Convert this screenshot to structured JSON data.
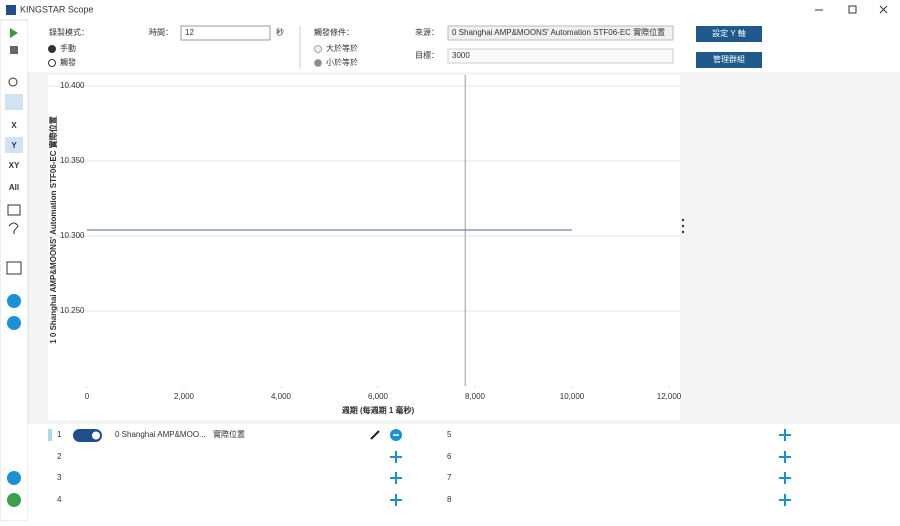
{
  "window": {
    "title": "KINGSTAR Scope"
  },
  "toolbar": {
    "buttons": [
      "X",
      "Y",
      "XY",
      "All"
    ]
  },
  "controls": {
    "record_mode_label": "錄製模式：",
    "manual": "手動",
    "trigger": "觸發",
    "time_label": "時間：",
    "time_value": "12",
    "time_unit": "秒",
    "trigger_cond_label": "觸發條件：",
    "gte": "大於等於",
    "lte": "小於等於",
    "source_label": "來源：",
    "source_value": "0 Shanghai AMP&MOONS' Automation STF06-EC 實際位置",
    "target_label": "目標：",
    "target_value": "3000",
    "set_y_button": "設定 Y 軸",
    "manage_group_button": "管理群組"
  },
  "chart_data": {
    "type": "line",
    "x_label": "週期 (每週期 1 毫秒)",
    "y_label": "1   0 Shanghai AMP&MOONS' Automation STF06-EC 實際位置",
    "x": [
      0,
      10000
    ],
    "series": [
      {
        "color": "#4a6a9a",
        "values": [
          10.304,
          10.304
        ]
      }
    ],
    "xlim": [
      0,
      12000
    ],
    "xticks": [
      0,
      {
        "value": 2000,
        "label": "2,000"
      },
      {
        "value": 4000,
        "label": "4,000"
      },
      {
        "value": 6000,
        "label": "6,000"
      },
      {
        "value": 8000,
        "label": "8,000"
      },
      {
        "value": 10000,
        "label": "10,000"
      },
      {
        "value": 12000,
        "label": "12,000"
      }
    ],
    "ylim": [
      10.2,
      10.4
    ],
    "yticks": [
      {
        "value": 10.25,
        "label": "10.250"
      },
      {
        "value": 10.3,
        "label": "10.300"
      },
      {
        "value": 10.35,
        "label": "10.350"
      },
      {
        "value": 10.4,
        "label": "10.400"
      }
    ],
    "grid": true,
    "cursor_x": 7800
  },
  "channels": [
    {
      "index": 1,
      "source": "0 Shanghai AMP&MOO...",
      "signal": "實際位置"
    },
    {
      "index": 2
    },
    {
      "index": 3
    },
    {
      "index": 4
    },
    {
      "index": 5
    },
    {
      "index": 6
    },
    {
      "index": 7
    },
    {
      "index": 8
    }
  ]
}
